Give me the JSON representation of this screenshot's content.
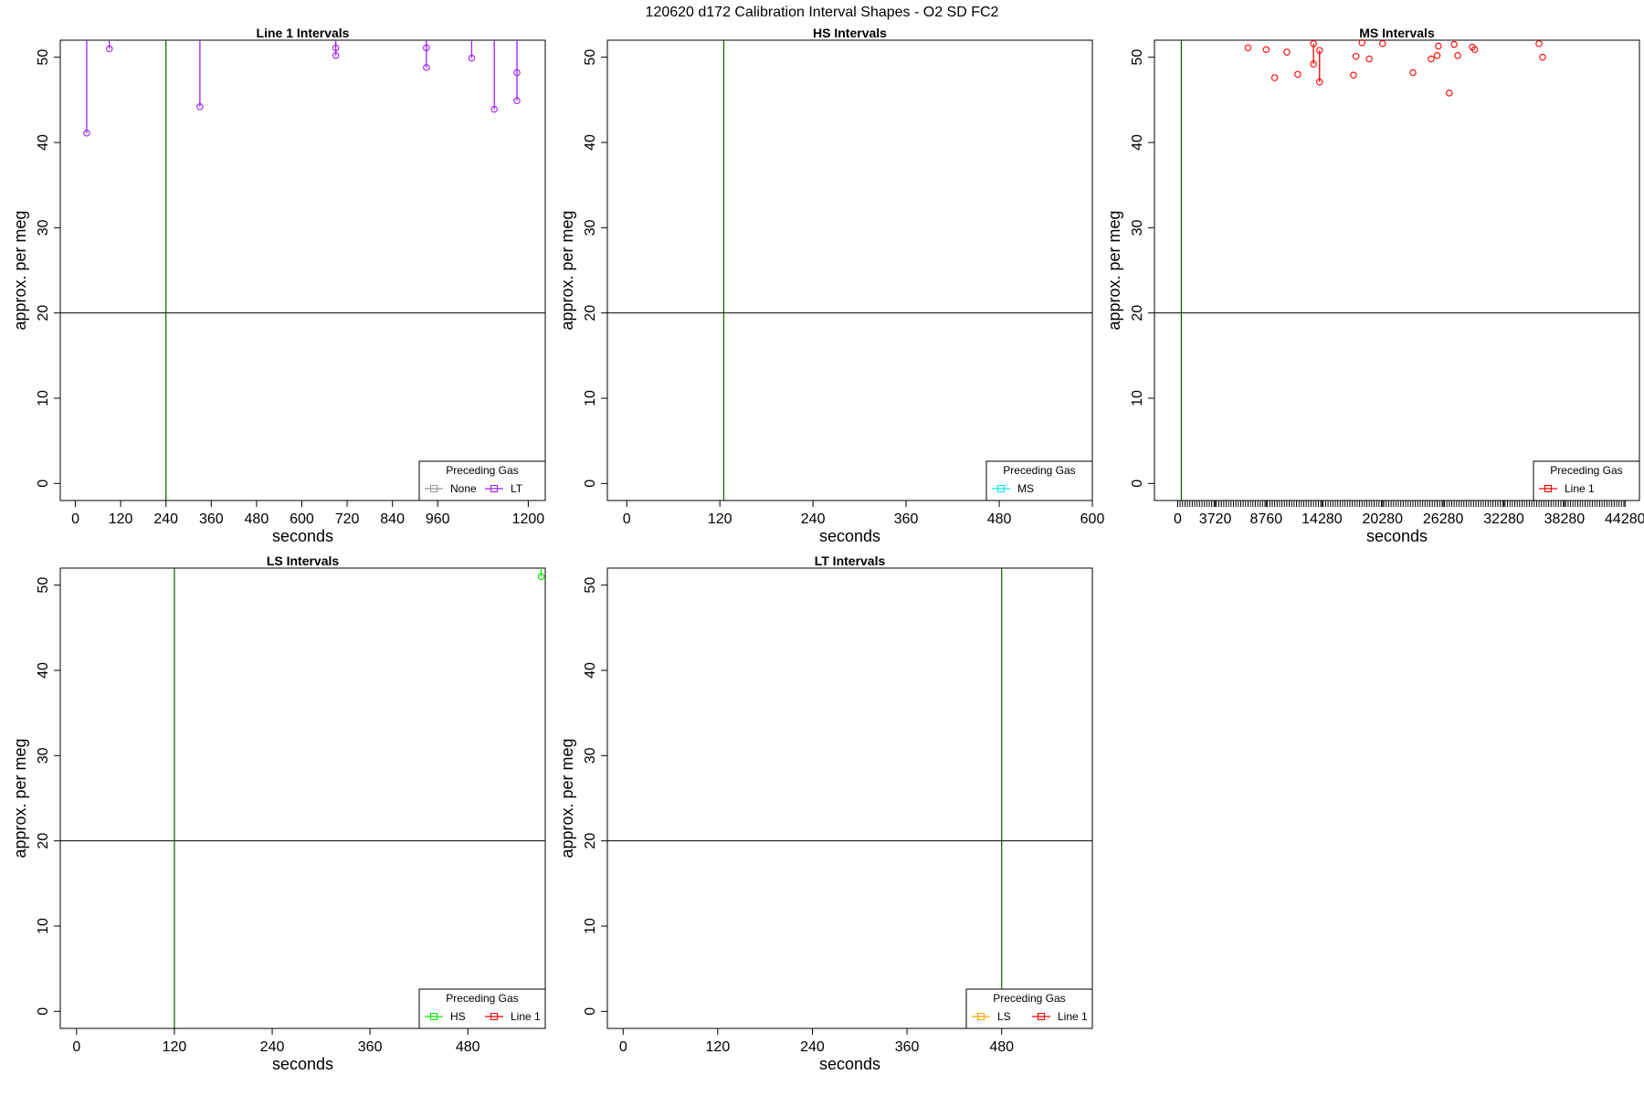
{
  "figure_title": "120620   d172   Calibration Interval Shapes - O2 SD FC2",
  "colors": {
    "None": "#999999",
    "LT": "#a020f0",
    "MS": "#00e5ee",
    "HS": "#00ee00",
    "LS": "#ffa500",
    "Line 1": "#ff0000",
    "vline": "#006400",
    "hline": "#000000"
  },
  "chart_data": [
    {
      "type": "line",
      "title": "Line 1 Intervals",
      "xlabel": "seconds",
      "ylabel": "approx. per meg",
      "xlim": [
        -40,
        1245
      ],
      "ylim": [
        -2,
        52
      ],
      "xticks": [
        0,
        120,
        240,
        360,
        480,
        600,
        720,
        840,
        960,
        1200
      ],
      "yticks": [
        0,
        10,
        20,
        30,
        40,
        50
      ],
      "vline": 240,
      "hline": 20,
      "legend": {
        "title": "Preceding Gas",
        "position": "bottom-right",
        "entries": [
          "None",
          "LT"
        ]
      },
      "series": [
        {
          "name": "LT",
          "points": [
            [
              30,
              41.1
            ],
            [
              30,
              52
            ],
            [
              90,
              51.0
            ],
            [
              90,
              52
            ],
            [
              330,
              44.2
            ],
            [
              330,
              52
            ],
            [
              690,
              50.2
            ],
            [
              690,
              51.1
            ],
            [
              690,
              52
            ],
            [
              930,
              48.8
            ],
            [
              930,
              51.1
            ],
            [
              930,
              52
            ],
            [
              1050,
              49.9
            ],
            [
              1050,
              52
            ],
            [
              1110,
              43.9
            ],
            [
              1110,
              52
            ],
            [
              1170,
              44.9
            ],
            [
              1170,
              48.2
            ],
            [
              1170,
              52
            ]
          ]
        }
      ]
    },
    {
      "type": "line",
      "title": "HS Intervals",
      "xlabel": "seconds",
      "ylabel": "approx. per meg",
      "xlim": [
        -25,
        600
      ],
      "ylim": [
        -2,
        52
      ],
      "xticks": [
        0,
        120,
        240,
        360,
        480,
        600
      ],
      "yticks": [
        0,
        10,
        20,
        30,
        40,
        50
      ],
      "vline": 125,
      "hline": 20,
      "legend": {
        "title": "Preceding Gas",
        "position": "bottom-right",
        "entries": [
          "MS"
        ]
      },
      "series": []
    },
    {
      "type": "line",
      "title": "MS Intervals",
      "xlabel": "seconds",
      "ylabel": "approx. per meg",
      "xlim": [
        -2300,
        45700
      ],
      "ylim": [
        -2,
        52
      ],
      "xticks": [
        0,
        3720,
        8760,
        14280,
        20280,
        26280,
        32280,
        38280,
        44280
      ],
      "minor_ticks": {
        "start": 0,
        "end": 44280,
        "step": 240
      },
      "yticks": [
        0,
        10,
        20,
        30,
        40,
        50
      ],
      "vline": 360,
      "hline": 20,
      "legend": {
        "title": "Preceding Gas",
        "position": "bottom-right",
        "entries": [
          "Line 1"
        ]
      },
      "series": [
        {
          "name": "Line 1",
          "points": [
            [
              6960,
              51.1
            ],
            [
              8760,
              50.9
            ],
            [
              9600,
              47.6
            ],
            [
              10800,
              50.6
            ],
            [
              11880,
              48.0
            ],
            [
              13440,
              51.6
            ],
            [
              13440,
              49.2
            ],
            [
              14040,
              50.8
            ],
            [
              14040,
              47.1
            ],
            [
              17400,
              47.9
            ],
            [
              17640,
              50.1
            ],
            [
              18240,
              51.7
            ],
            [
              18960,
              49.8
            ],
            [
              20280,
              51.6
            ],
            [
              23280,
              48.2
            ],
            [
              25080,
              49.8
            ],
            [
              25680,
              50.2
            ],
            [
              25800,
              51.3
            ],
            [
              26880,
              45.8
            ],
            [
              27360,
              51.5
            ],
            [
              27720,
              50.2
            ],
            [
              29160,
              51.2
            ],
            [
              29400,
              50.9
            ],
            [
              35760,
              51.6
            ],
            [
              36120,
              50.0
            ]
          ]
        }
      ]
    },
    {
      "type": "line",
      "title": "LS Intervals",
      "xlabel": "seconds",
      "ylabel": "approx. per meg",
      "xlim": [
        -20,
        575
      ],
      "ylim": [
        -2,
        52
      ],
      "xticks": [
        0,
        120,
        240,
        360,
        480
      ],
      "yticks": [
        0,
        10,
        20,
        30,
        40,
        50
      ],
      "vline": 120,
      "hline": 20,
      "legend": {
        "title": "Preceding Gas",
        "position": "bottom-right",
        "entries": [
          "HS",
          "Line 1"
        ]
      },
      "series": [
        {
          "name": "HS",
          "points": [
            [
              570,
              51.0
            ],
            [
              570,
              52
            ]
          ]
        }
      ]
    },
    {
      "type": "line",
      "title": "LT Intervals",
      "xlabel": "seconds",
      "ylabel": "approx. per meg",
      "xlim": [
        -20,
        595
      ],
      "ylim": [
        -2,
        52
      ],
      "xticks": [
        0,
        120,
        240,
        360,
        480
      ],
      "yticks": [
        0,
        10,
        20,
        30,
        40,
        50
      ],
      "vline": 480,
      "hline": 20,
      "legend": {
        "title": "Preceding Gas",
        "position": "bottom-right",
        "entries": [
          "LS",
          "Line 1"
        ]
      },
      "series": []
    }
  ]
}
